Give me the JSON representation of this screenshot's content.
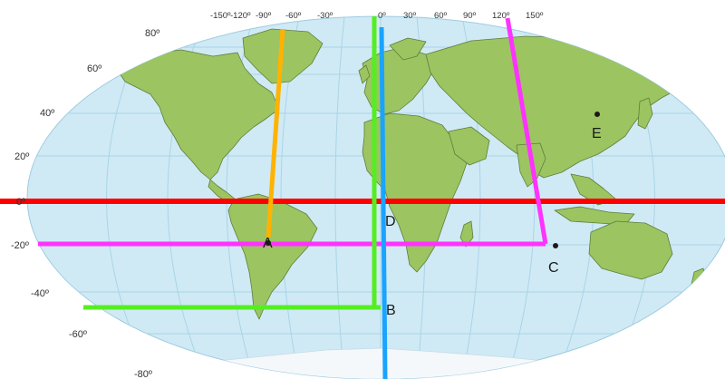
{
  "map": {
    "projection": "elliptical world map",
    "colors": {
      "ocean": "#cfeaf5",
      "land": "#9cc461",
      "border": "#5f7d3a",
      "ice": "#f4f8fb",
      "graticule": "#a9d4e7"
    },
    "longitude_labels": [
      "-150º",
      "-120º",
      "-90º",
      "-60º",
      "-30º",
      "0º",
      "30º",
      "60º",
      "90º",
      "120º",
      "150º"
    ],
    "latitude_labels": [
      "80º",
      "60º",
      "40º",
      "20º",
      "0º",
      "-20º",
      "-40º",
      "-60º",
      "-80º"
    ],
    "points": [
      {
        "id": "A",
        "label": "A"
      },
      {
        "id": "B",
        "label": "B"
      },
      {
        "id": "C",
        "label": "C"
      },
      {
        "id": "D",
        "label": "D"
      },
      {
        "id": "E",
        "label": "E"
      }
    ],
    "overlay_lines": [
      {
        "id": "equator",
        "color": "#ff0000"
      },
      {
        "id": "lat-minus-20",
        "color": "#ff33ff"
      },
      {
        "id": "c-slanted-meridian",
        "color": "#ff33ff"
      },
      {
        "id": "a-meridian",
        "color": "#ffb300"
      },
      {
        "id": "b-meridian",
        "color": "#1aa3ff"
      },
      {
        "id": "b-corner-meridian",
        "color": "#55ee22"
      },
      {
        "id": "b-corner-parallel",
        "color": "#55ee22"
      }
    ]
  }
}
